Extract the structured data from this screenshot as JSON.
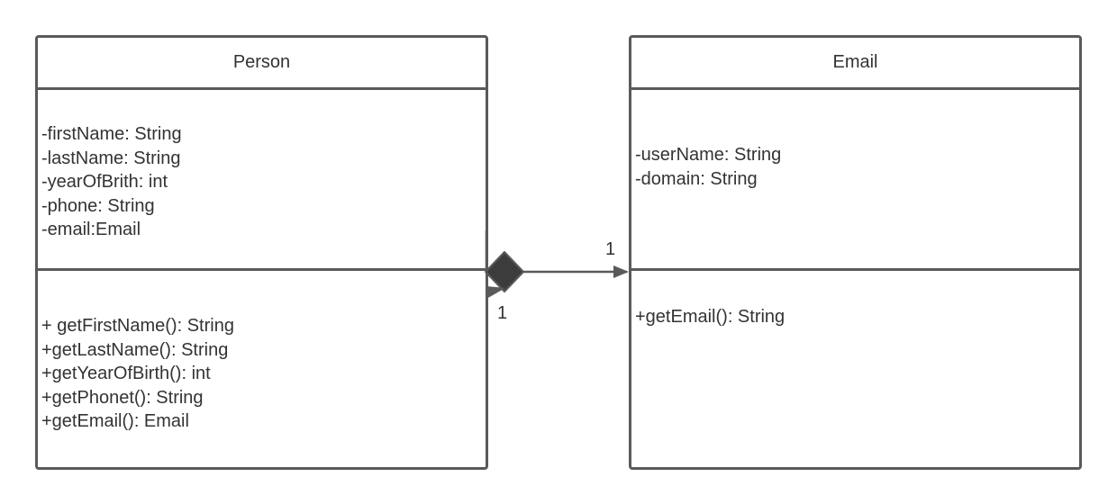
{
  "classes": {
    "person": {
      "name": "Person",
      "attributes": [
        "-firstName: String",
        "-lastName: String",
        "-yearOfBrith: int",
        "-phone: String",
        "-email:Email"
      ],
      "operations": [
        "+ getFirstName(): String",
        "+getLastName(): String",
        "+getYearOfBirth(): int",
        "+getPhonet(): String",
        "+getEmail(): Email"
      ]
    },
    "email": {
      "name": "Email",
      "attributes": [
        "-userName: String",
        "-domain: String"
      ],
      "operations": [
        "+getEmail(): String"
      ]
    }
  },
  "association": {
    "type": "composition",
    "source_multiplicity": "1",
    "target_multiplicity": "1"
  },
  "colors": {
    "border": "#5a5a5a",
    "text": "#333333",
    "diamond": "#3c3c3c"
  }
}
